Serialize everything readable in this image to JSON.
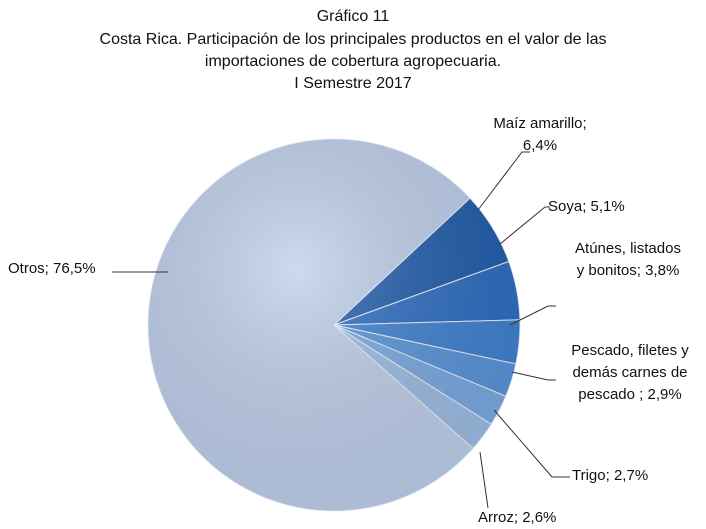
{
  "chart_data": {
    "type": "pie",
    "title": "Gráfico 11",
    "subtitle": "Costa Rica.  Participación de los principales productos en el valor de las importaciones de cobertura agropecuaria.",
    "period": "I Semestre 2017",
    "categories": [
      "Maíz amarillo;",
      "Soya;",
      "Atúnes, listados y bonitos;",
      "Pescado, filetes y demás carnes de pescado ;",
      "Trigo;",
      "Arroz;",
      "Otros;"
    ],
    "values": [
      6.4,
      5.1,
      3.8,
      2.9,
      2.7,
      2.6,
      76.5
    ],
    "value_labels": [
      "6,4%",
      "5,1%",
      "3,8%",
      "2,9%",
      "2,7%",
      "2,6%",
      "76,5%"
    ],
    "colors": [
      "#1f5cab",
      "#2c6cc0",
      "#3f80d0",
      "#5893d8",
      "#78a8df",
      "#9bbbe2",
      "#bccde9"
    ]
  }
}
